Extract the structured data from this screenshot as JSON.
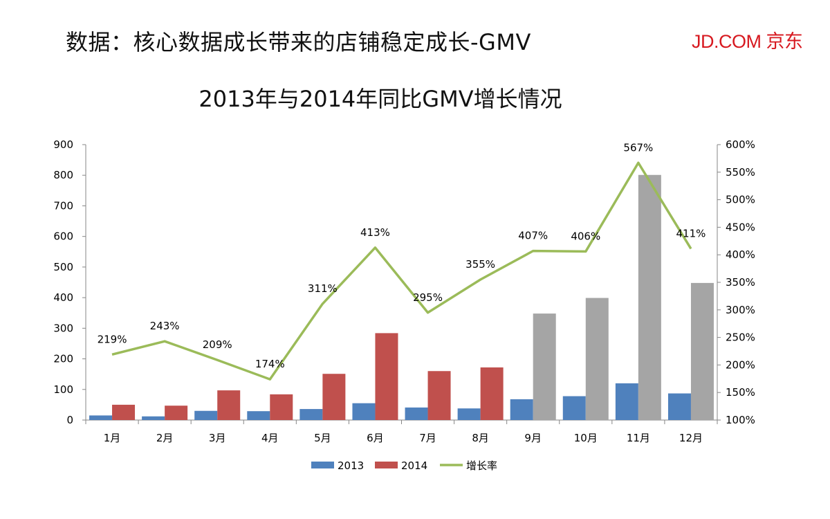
{
  "header": {
    "title": "数据：核心数据成长带来的店铺稳定成长-GMV",
    "brand": "JD.COM 京东"
  },
  "colors": {
    "s2013": "#4f81bd",
    "s2014": "#c0504d",
    "s2014_later": "#a5a5a5",
    "growth": "#9bbb59",
    "axis": "#868686"
  },
  "chart_data": {
    "type": "bar",
    "title": "2013年与2014年同比GMV增长情况",
    "categories": [
      "1月",
      "2月",
      "3月",
      "4月",
      "5月",
      "6月",
      "7月",
      "8月",
      "9月",
      "10月",
      "11月",
      "12月"
    ],
    "series": [
      {
        "name": "2013",
        "type": "bar",
        "axis": "left",
        "values": [
          15,
          12,
          30,
          29,
          36,
          55,
          41,
          38,
          68,
          78,
          120,
          87
        ]
      },
      {
        "name": "2014",
        "type": "bar",
        "axis": "left",
        "values": [
          50,
          47,
          97,
          84,
          151,
          284,
          160,
          172,
          348,
          399,
          801,
          448
        ]
      },
      {
        "name": "增长率",
        "type": "line",
        "axis": "right",
        "values": [
          219,
          243,
          209,
          174,
          311,
          413,
          295,
          355,
          407,
          406,
          567,
          411
        ],
        "labels": [
          "219%",
          "243%",
          "209%",
          "174%",
          "311%",
          "413%",
          "295%",
          "355%",
          "407%",
          "406%",
          "567%",
          "411%"
        ]
      }
    ],
    "left_axis": {
      "min": 0,
      "max": 900,
      "step": 100,
      "ticks": [
        "0",
        "100",
        "200",
        "300",
        "400",
        "500",
        "600",
        "700",
        "800",
        "900"
      ]
    },
    "right_axis": {
      "min": 100,
      "max": 600,
      "step": 50,
      "ticks": [
        "100%",
        "150%",
        "200%",
        "250%",
        "300%",
        "350%",
        "400%",
        "450%",
        "500%",
        "550%",
        "600%"
      ]
    },
    "legend": {
      "position": "bottom",
      "labels": [
        "2013",
        "2014",
        "增长率"
      ]
    },
    "grid": false
  }
}
